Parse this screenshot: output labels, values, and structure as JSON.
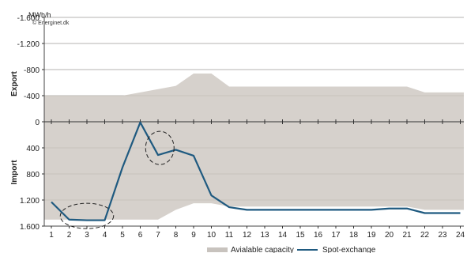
{
  "chart_data": {
    "type": "area",
    "unit_label": "MWh/h",
    "copyright": "© Energinet.dk",
    "upper_axis_title": "Export",
    "lower_axis_title": "Import",
    "ytick_labels": [
      "-1.600",
      "-1.200",
      "-800",
      "-400",
      "0",
      "400",
      "800",
      "1.200",
      "1.600"
    ],
    "ytick_values": [
      -1600,
      -1200,
      -800,
      -400,
      0,
      400,
      800,
      1200,
      1600
    ],
    "ylim": [
      -1600,
      1600
    ],
    "y_inverted": true,
    "x": [
      1,
      2,
      3,
      4,
      5,
      6,
      7,
      8,
      9,
      10,
      11,
      12,
      13,
      14,
      15,
      16,
      17,
      18,
      19,
      20,
      21,
      22,
      23,
      24
    ],
    "xtick_labels": [
      "1",
      "2",
      "3",
      "4",
      "5",
      "6",
      "7",
      "8",
      "9",
      "10",
      "11",
      "12",
      "13",
      "14",
      "15",
      "16",
      "17",
      "18",
      "19",
      "20",
      "21",
      "22",
      "23",
      "24"
    ],
    "grid": true,
    "legend_position": "bottom",
    "series": [
      {
        "name": "Avialable capacity",
        "kind": "band",
        "color": "#d6d1cc",
        "export_capacity": [
          -400,
          -400,
          -400,
          -400,
          -400,
          -450,
          -500,
          -550,
          -740,
          -740,
          -540,
          -540,
          -540,
          -540,
          -540,
          -540,
          -540,
          -540,
          -540,
          -540,
          -540,
          -450,
          -450,
          -450
        ],
        "import_capacity": [
          1500,
          1500,
          1500,
          1500,
          1500,
          1500,
          1500,
          1350,
          1250,
          1250,
          1300,
          1300,
          1300,
          1300,
          1300,
          1300,
          1300,
          1300,
          1300,
          1300,
          1300,
          1350,
          1350,
          1350
        ]
      },
      {
        "name": "Spot-exchange",
        "kind": "line",
        "color": "#1f5a80",
        "values": [
          1230,
          1500,
          1510,
          1510,
          700,
          10,
          510,
          430,
          520,
          1130,
          1310,
          1350,
          1350,
          1350,
          1350,
          1350,
          1350,
          1350,
          1350,
          1330,
          1330,
          1400,
          1400,
          1400
        ]
      }
    ],
    "annotations": [
      {
        "shape": "dashed-ellipse",
        "near_x": [
          1.5,
          4.5
        ],
        "near_y": 1420
      },
      {
        "shape": "dashed-circle",
        "near_x": 7.1,
        "near_y": 450
      }
    ]
  }
}
